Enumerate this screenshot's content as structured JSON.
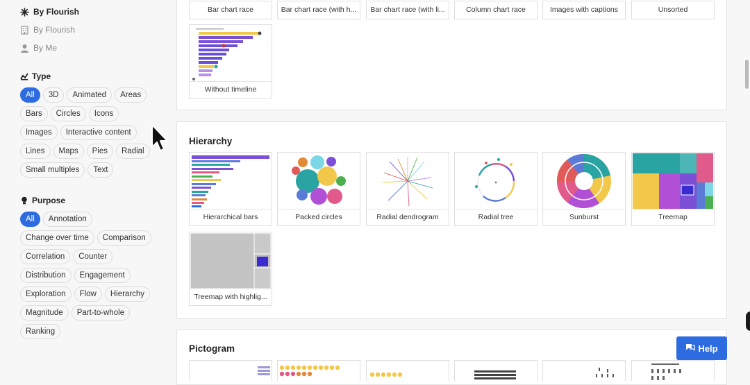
{
  "sidebar": {
    "sources": [
      {
        "label": "By Flourish",
        "icon": "flourish-icon",
        "active": true
      },
      {
        "label": "By Flourish",
        "icon": "building-icon",
        "active": false
      },
      {
        "label": "By Me",
        "icon": "person-icon",
        "active": false
      }
    ],
    "type": {
      "title": "Type",
      "chips": [
        "All",
        "3D",
        "Animated",
        "Areas",
        "Bars",
        "Circles",
        "Icons",
        "Images",
        "Interactive content",
        "Lines",
        "Maps",
        "Pies",
        "Radial",
        "Small multiples",
        "Text"
      ]
    },
    "purpose": {
      "title": "Purpose",
      "chips": [
        "All",
        "Annotation",
        "Change over time",
        "Comparison",
        "Correlation",
        "Counter",
        "Distribution",
        "Engagement",
        "Exploration",
        "Flow",
        "Hierarchy",
        "Magnitude",
        "Part-to-whole",
        "Ranking"
      ]
    }
  },
  "sections": {
    "top_row": [
      "Bar chart race",
      "Bar chart race (with h...",
      "Bar chart race (with li...",
      "Column chart race",
      "Images with captions",
      "Unsorted"
    ],
    "top_card": "Without timeline",
    "hierarchy": {
      "title": "Hierarchy",
      "cards": [
        "Hierarchical bars",
        "Packed circles",
        "Radial dendrogram",
        "Radial tree",
        "Sunburst",
        "Treemap",
        "Treemap with highlig..."
      ]
    },
    "pictogram": {
      "title": "Pictogram"
    }
  },
  "help": {
    "label": "Help"
  },
  "colors": {
    "accent": "#2d6be0"
  }
}
